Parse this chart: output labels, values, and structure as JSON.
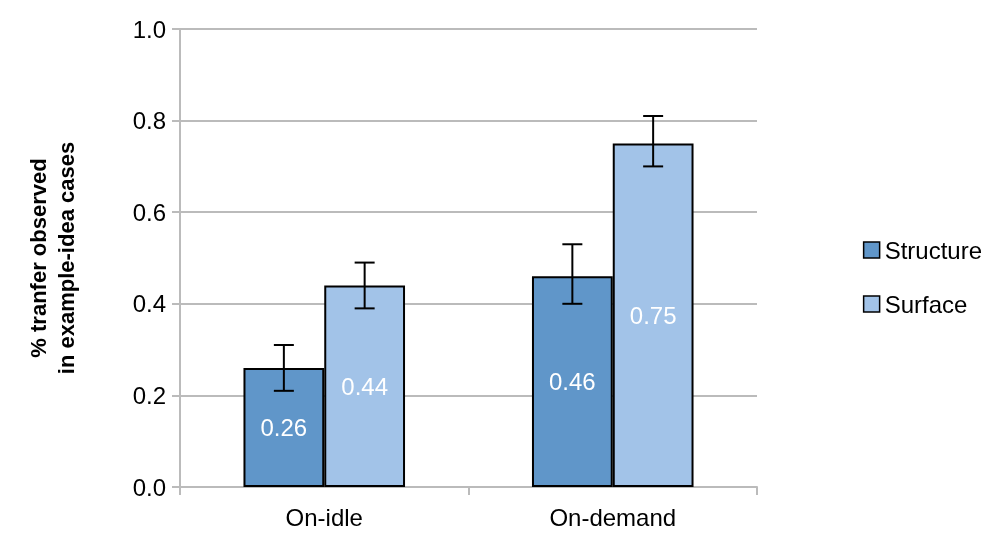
{
  "chart_data": {
    "type": "bar",
    "ylabel": "% tranfer observed\nin example-idea cases",
    "categories": [
      "On-idle",
      "On-demand"
    ],
    "series": [
      {
        "name": "Structure",
        "color": "#6096c9",
        "values": [
          0.26,
          0.46
        ],
        "errors": [
          [
            0.21,
            0.31
          ],
          [
            0.4,
            0.53
          ]
        ]
      },
      {
        "name": "Surface",
        "color": "#a2c3e8",
        "values": [
          0.44,
          0.75
        ],
        "errors": [
          [
            0.39,
            0.49
          ],
          [
            0.7,
            0.81
          ]
        ]
      }
    ],
    "ylim": [
      0,
      1
    ],
    "yticks": [
      {
        "value": 0,
        "label": "0.0"
      },
      {
        "value": 0.2,
        "label": "0.2"
      },
      {
        "value": 0.4,
        "label": "0.4"
      },
      {
        "value": 0.6,
        "label": "0.6"
      },
      {
        "value": 0.8,
        "label": "0.8"
      },
      {
        "value": 1,
        "label": "1.0"
      }
    ],
    "grid": "y",
    "legend": "right",
    "data_labels": true
  }
}
